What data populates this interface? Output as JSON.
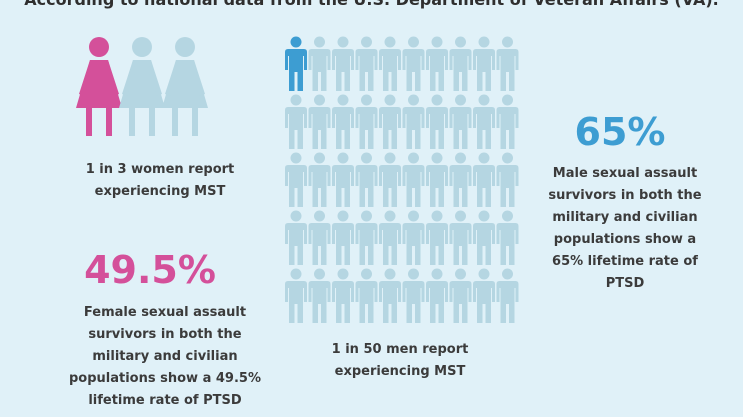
{
  "title": "According to national data from the U.S. Department of Veteran Affairs (VA).",
  "colors": {
    "background": "#e0f1f8",
    "female_accent": "#d4509a",
    "male_accent": "#3d9dd2",
    "figure_inactive": "#b5d6e2"
  },
  "women": {
    "highlighted": 1,
    "total": 3,
    "caption": "1 in 3 women report experiencing MST",
    "stat": "49.5%",
    "stat_caption": "Female sexual assault survivors in both the military and civilian populations show a 49.5% lifetime rate of PTSD"
  },
  "men": {
    "highlighted": 1,
    "total": 50,
    "caption": "1 in 50 men report experiencing MST",
    "stat": "65%",
    "stat_caption": "Male sexual assault survivors in both the military and civilian populations show a 65% lifetime rate of PTSD"
  }
}
